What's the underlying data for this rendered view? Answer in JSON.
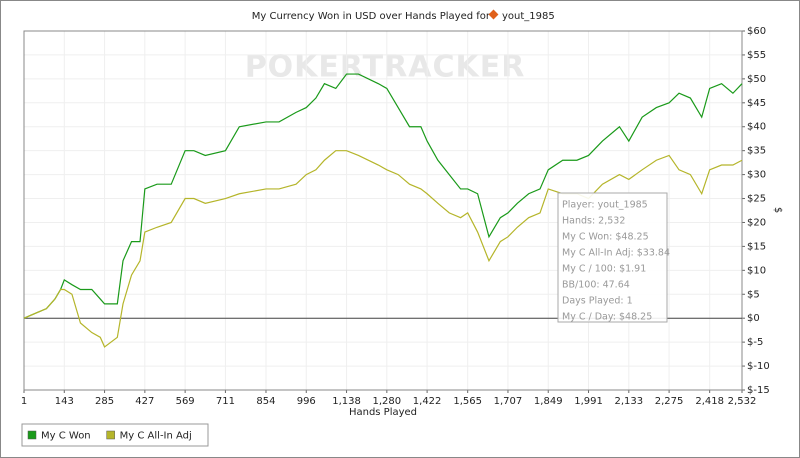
{
  "chart_data": {
    "type": "line",
    "title": "My Currency Won in USD over Hands Played for",
    "player": "yout_1985",
    "watermark": "POKERTRACKER",
    "xlabel": "Hands Played",
    "ylabel": "$",
    "xlim": [
      1,
      2532
    ],
    "ylim": [
      -15,
      60
    ],
    "xticks": [
      1,
      143,
      285,
      427,
      569,
      711,
      854,
      996,
      {
        "value": 1138,
        "label": "1,138"
      },
      {
        "value": 1280,
        "label": "1,280"
      },
      {
        "value": 1422,
        "label": "1,422"
      },
      {
        "value": 1565,
        "label": "1,565"
      },
      {
        "value": 1707,
        "label": "1,707"
      },
      {
        "value": 1849,
        "label": "1,849"
      },
      {
        "value": 1991,
        "label": "1,991"
      },
      {
        "value": 2133,
        "label": "2,133"
      },
      {
        "value": 2275,
        "label": "2,275"
      },
      {
        "value": 2418,
        "label": "2,418"
      },
      {
        "value": 2532,
        "label": "2,532"
      }
    ],
    "yticks": [
      {
        "value": -15,
        "label": "$-15"
      },
      {
        "value": -10,
        "label": "$-10"
      },
      {
        "value": -5,
        "label": "$-5"
      },
      {
        "value": 0,
        "label": "$0"
      },
      {
        "value": 5,
        "label": "$5"
      },
      {
        "value": 10,
        "label": "$10"
      },
      {
        "value": 15,
        "label": "$15"
      },
      {
        "value": 20,
        "label": "$20"
      },
      {
        "value": 25,
        "label": "$25"
      },
      {
        "value": 30,
        "label": "$30"
      },
      {
        "value": 35,
        "label": "$35"
      },
      {
        "value": 40,
        "label": "$40"
      },
      {
        "value": 45,
        "label": "$45"
      },
      {
        "value": 50,
        "label": "$50"
      },
      {
        "value": 55,
        "label": "$55"
      },
      {
        "value": 60,
        "label": "$60"
      }
    ],
    "grid": true,
    "legend": "bottom-left",
    "x": [
      1,
      40,
      80,
      110,
      130,
      143,
      170,
      200,
      240,
      270,
      285,
      330,
      350,
      380,
      410,
      427,
      470,
      520,
      569,
      600,
      640,
      711,
      760,
      854,
      900,
      960,
      996,
      1030,
      1060,
      1100,
      1138,
      1180,
      1250,
      1280,
      1320,
      1360,
      1400,
      1422,
      1460,
      1500,
      1540,
      1565,
      1600,
      1640,
      1680,
      1707,
      1740,
      1780,
      1820,
      1849,
      1900,
      1950,
      1991,
      2040,
      2100,
      2133,
      2180,
      2230,
      2275,
      2310,
      2350,
      2390,
      2418,
      2460,
      2500,
      2532
    ],
    "series": [
      {
        "name": "My C Won",
        "color": "#1a9a1a",
        "values": [
          0,
          1,
          2,
          4,
          6,
          8,
          7,
          6,
          6,
          4,
          3,
          3,
          12,
          16,
          16,
          27,
          28,
          28,
          35,
          35,
          34,
          35,
          40,
          41,
          41,
          43,
          44,
          46,
          49,
          48,
          51,
          51,
          49,
          48,
          44,
          40,
          40,
          37,
          33,
          30,
          27,
          27,
          26,
          17,
          21,
          22,
          24,
          26,
          27,
          31,
          33,
          33,
          34,
          37,
          40,
          37,
          42,
          44,
          45,
          47,
          46,
          42,
          48,
          49,
          47,
          49
        ]
      },
      {
        "name": "My C All-In Adj",
        "color": "#b5b52a",
        "values": [
          0,
          1,
          2,
          4,
          6,
          6,
          5,
          -1,
          -3,
          -4,
          -6,
          -4,
          3,
          9,
          12,
          18,
          19,
          20,
          25,
          25,
          24,
          25,
          26,
          27,
          27,
          28,
          30,
          31,
          33,
          35,
          35,
          34,
          32,
          31,
          30,
          28,
          27,
          26,
          24,
          22,
          21,
          22,
          18,
          12,
          16,
          17,
          19,
          21,
          22,
          27,
          26,
          26,
          25,
          28,
          30,
          29,
          31,
          33,
          34,
          31,
          30,
          26,
          31,
          32,
          32,
          33
        ]
      }
    ],
    "tooltip": {
      "lines": [
        "Player: yout_1985",
        "Hands: 2,532",
        "My C Won: $48.25",
        "My C All-In Adj: $33.84",
        "My C / 100: $1.91",
        "BB/100: 47.64",
        "Days Played: 1",
        "My C / Day: $48.25"
      ]
    }
  }
}
